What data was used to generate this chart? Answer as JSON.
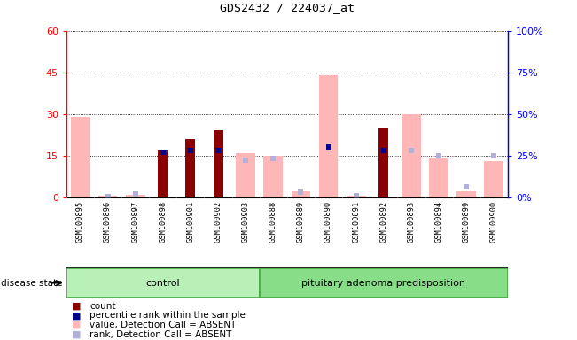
{
  "title": "GDS2432 / 224037_at",
  "samples": [
    "GSM100895",
    "GSM100896",
    "GSM100897",
    "GSM100898",
    "GSM100901",
    "GSM100902",
    "GSM100903",
    "GSM100888",
    "GSM100889",
    "GSM100890",
    "GSM100891",
    "GSM100892",
    "GSM100893",
    "GSM100894",
    "GSM100899",
    "GSM100900"
  ],
  "control_count": 7,
  "pituitary_count": 9,
  "group_labels": [
    "control",
    "pituitary adenoma predisposition"
  ],
  "count": [
    0,
    0,
    0,
    17,
    21,
    24,
    0,
    0,
    0,
    0,
    0,
    25,
    0,
    0,
    0,
    0
  ],
  "percentile_rank": [
    null,
    null,
    null,
    27,
    28,
    28,
    null,
    null,
    null,
    30,
    null,
    28,
    null,
    null,
    null,
    null
  ],
  "value_absent": [
    29,
    0.5,
    1,
    0,
    0,
    0,
    16,
    15,
    2,
    44,
    0.5,
    0,
    30,
    14,
    2,
    13
  ],
  "rank_absent": [
    null,
    0.5,
    2,
    null,
    null,
    null,
    22,
    23,
    3,
    null,
    1,
    null,
    28,
    25,
    6,
    25
  ],
  "ylim_left": [
    0,
    60
  ],
  "ylim_right": [
    0,
    100
  ],
  "yticks_left": [
    0,
    15,
    30,
    45,
    60
  ],
  "ytick_labels_left": [
    "0",
    "15",
    "30",
    "45",
    "60"
  ],
  "yticks_right": [
    0,
    25,
    50,
    75,
    100
  ],
  "ytick_labels_right": [
    "0%",
    "25%",
    "50%",
    "75%",
    "100%"
  ],
  "color_count": "#8b0000",
  "color_percentile": "#00008b",
  "color_value_absent": "#ffb6b6",
  "color_rank_absent": "#b0b0d8",
  "xtick_bg": "#cccccc",
  "group_fill": "#b8f0b8",
  "group_edge": "#44aa44",
  "disease_state_label": "disease state",
  "legend_items": [
    {
      "color": "#8b0000",
      "label": "count"
    },
    {
      "color": "#00008b",
      "label": "percentile rank within the sample"
    },
    {
      "color": "#ffb6b6",
      "label": "value, Detection Call = ABSENT"
    },
    {
      "color": "#b0b0d8",
      "label": "rank, Detection Call = ABSENT"
    }
  ]
}
